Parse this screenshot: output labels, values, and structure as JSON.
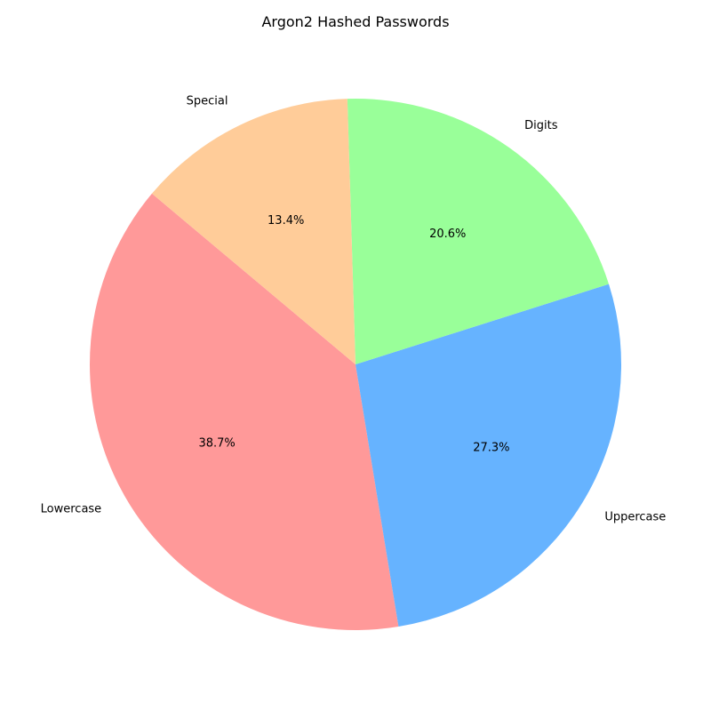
{
  "chart_data": {
    "type": "pie",
    "title": "Argon2 Hashed Passwords",
    "slices": [
      {
        "label": "Lowercase",
        "value": 38.7,
        "pct_label": "38.7%",
        "color": "#ff9999"
      },
      {
        "label": "Uppercase",
        "value": 27.3,
        "pct_label": "27.3%",
        "color": "#66b3ff"
      },
      {
        "label": "Digits",
        "value": 20.6,
        "pct_label": "20.6%",
        "color": "#99ff99"
      },
      {
        "label": "Special",
        "value": 13.4,
        "pct_label": "13.4%",
        "color": "#ffcc99"
      }
    ],
    "start_angle_deg": 140,
    "direction": "counterclockwise",
    "legend": "none"
  }
}
